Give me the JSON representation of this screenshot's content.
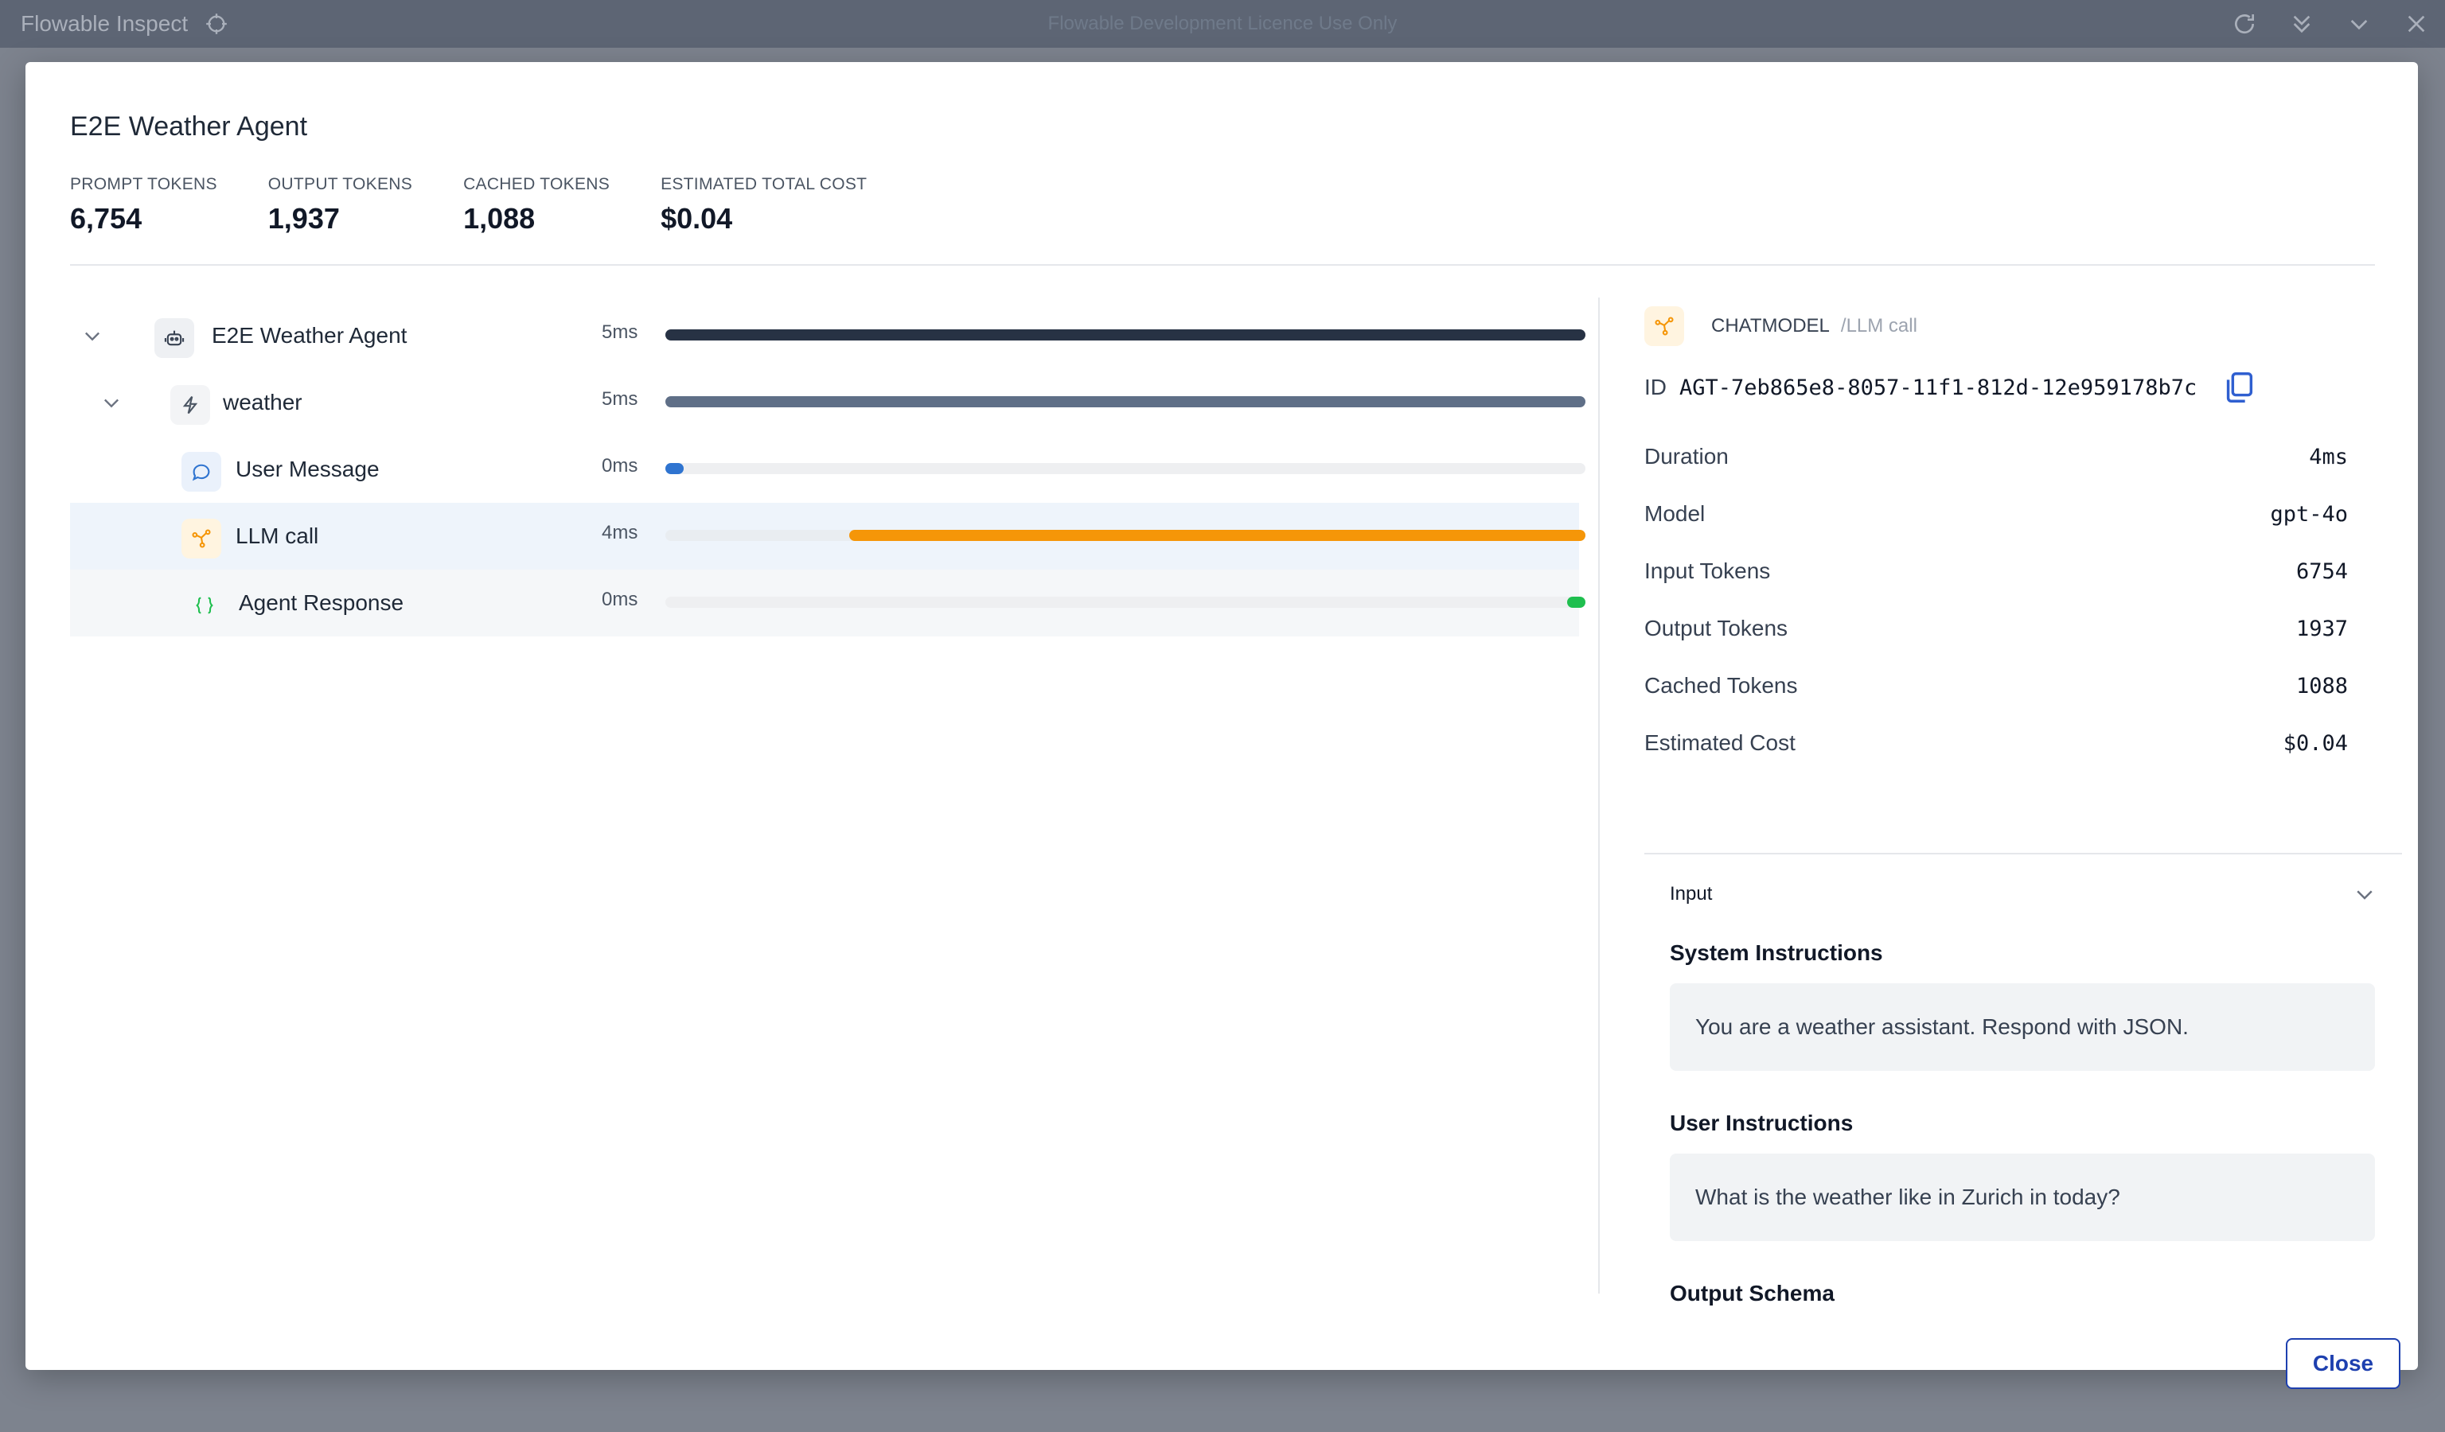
{
  "app": {
    "title": "Flowable Inspect",
    "licence_banner": "Flowable Development Licence Use Only"
  },
  "modal": {
    "title": "E2E Weather Agent",
    "stats": [
      {
        "label": "PROMPT TOKENS",
        "value": "6,754"
      },
      {
        "label": "OUTPUT TOKENS",
        "value": "1,937"
      },
      {
        "label": "CACHED TOKENS",
        "value": "1,088"
      },
      {
        "label": "ESTIMATED TOTAL COST",
        "value": "$0.04"
      }
    ],
    "close_label": "Close"
  },
  "trace": [
    {
      "label": "E2E Weather Agent",
      "duration": "5ms",
      "icon": "robot-icon",
      "bar_start": 0.0,
      "bar_end": 1.0,
      "color": "#273244"
    },
    {
      "label": "weather",
      "duration": "5ms",
      "icon": "lightning-icon",
      "bar_start": 0.0,
      "bar_end": 1.0,
      "color": "#5f6f87"
    },
    {
      "label": "User Message",
      "duration": "0ms",
      "icon": "chat-bubble-icon",
      "bar_start": 0.0,
      "bar_end": 0.02,
      "color": "#2f74d0"
    },
    {
      "label": "LLM call",
      "duration": "4ms",
      "icon": "llm-network-icon",
      "bar_start": 0.2,
      "bar_end": 1.0,
      "color": "#f59608"
    },
    {
      "label": "Agent Response",
      "duration": "0ms",
      "icon": "braces-icon",
      "bar_start": 0.98,
      "bar_end": 1.0,
      "color": "#1fbf4f"
    }
  ],
  "detail": {
    "type": "CHATMODEL",
    "subtype": "/LLM call",
    "id_label": "ID",
    "id_value": "AGT-7eb865e8-8057-11f1-812d-12e959178b7c",
    "properties": [
      {
        "key": "Duration",
        "value": "4ms"
      },
      {
        "key": "Model",
        "value": "gpt-4o"
      },
      {
        "key": "Input Tokens",
        "value": "6754"
      },
      {
        "key": "Output Tokens",
        "value": "1937"
      },
      {
        "key": "Cached Tokens",
        "value": "1088"
      },
      {
        "key": "Estimated Cost",
        "value": "$0.04"
      }
    ],
    "input_section": "Input",
    "system_instructions_title": "System Instructions",
    "system_instructions": "You are a weather assistant. Respond with JSON.",
    "user_instructions_title": "User Instructions",
    "user_instructions": "What is the weather like in Zurich in today?",
    "output_schema_title": "Output Schema"
  },
  "colors": {
    "accent": "#1e40af",
    "llm": "#f59608",
    "selected_row": "#eef4fb"
  }
}
